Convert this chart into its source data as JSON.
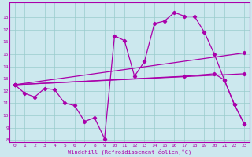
{
  "xlabel": "Windchill (Refroidissement éolien,°C)",
  "ylabel": "",
  "bg_color": "#cce8ee",
  "line_color": "#aa00aa",
  "grid_color": "#99cccc",
  "xlim": [
    -0.5,
    23.5
  ],
  "ylim": [
    7.8,
    19.2
  ],
  "yticks": [
    8,
    9,
    10,
    11,
    12,
    13,
    14,
    15,
    16,
    17,
    18
  ],
  "xticks": [
    0,
    1,
    2,
    3,
    4,
    5,
    6,
    7,
    8,
    9,
    10,
    11,
    12,
    13,
    14,
    15,
    16,
    17,
    18,
    19,
    20,
    21,
    22,
    23
  ],
  "curve_main_x": [
    0,
    1,
    2,
    3,
    4,
    5,
    6,
    7,
    8,
    9,
    10,
    11,
    12,
    13,
    14,
    15,
    16,
    17,
    18,
    19,
    20,
    21,
    22,
    23
  ],
  "curve_main_y": [
    12.5,
    11.8,
    11.5,
    12.2,
    12.1,
    11.0,
    10.8,
    9.5,
    9.8,
    8.1,
    16.5,
    16.1,
    13.2,
    14.4,
    17.5,
    17.7,
    18.4,
    18.1,
    18.1,
    16.8,
    15.0,
    12.9,
    10.9,
    9.3
  ],
  "curve_line1_x": [
    0,
    23
  ],
  "curve_line1_y": [
    12.5,
    15.1
  ],
  "curve_line2_x": [
    0,
    23
  ],
  "curve_line2_y": [
    12.5,
    13.4
  ],
  "curve_line3_x": [
    0,
    17,
    20,
    21,
    22,
    23
  ],
  "curve_line3_y": [
    12.5,
    13.2,
    13.4,
    12.9,
    10.9,
    9.3
  ]
}
